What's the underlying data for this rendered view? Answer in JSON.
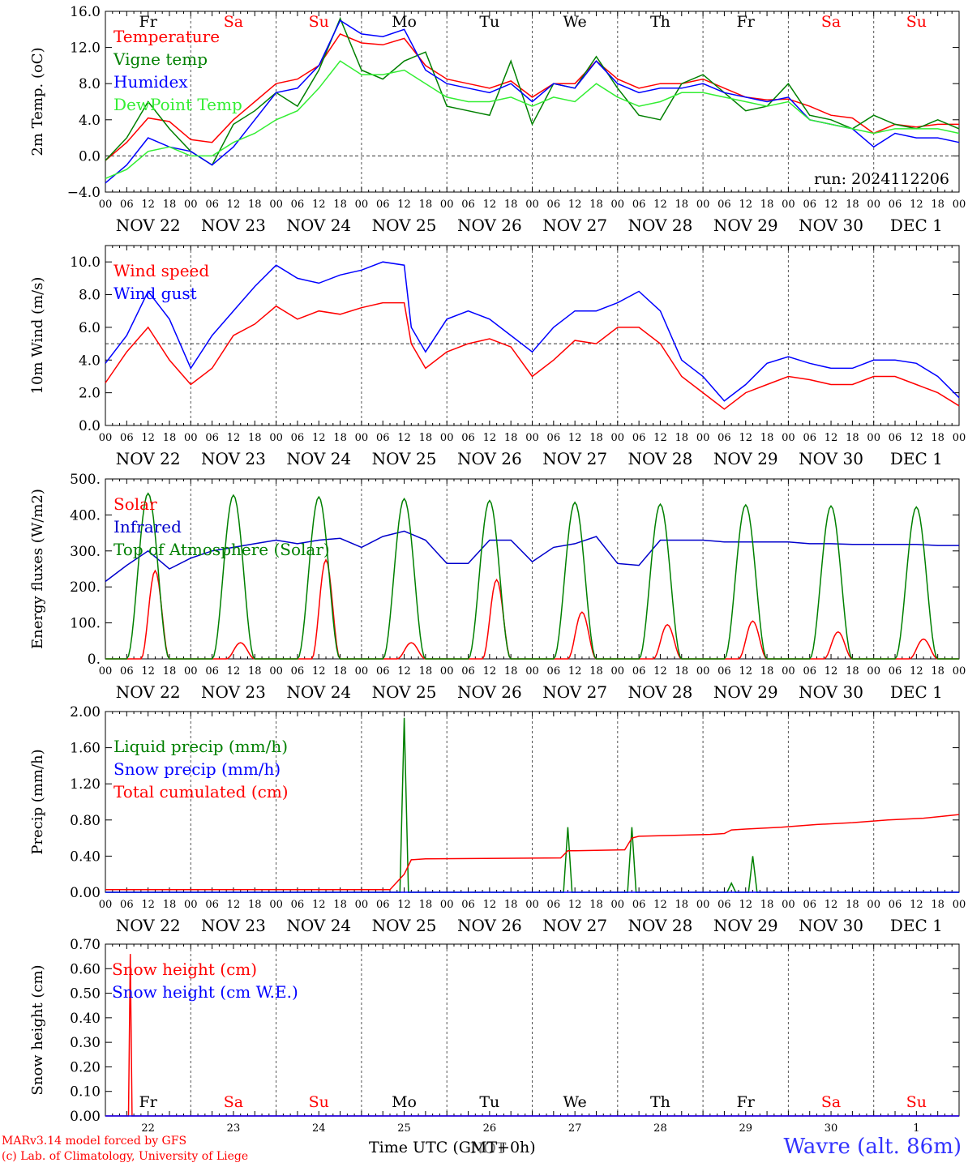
{
  "days": {
    "top_labels": [
      "Fr",
      "Sa",
      "Su",
      "Mo",
      "Tu",
      "We",
      "Th",
      "Fr",
      "Sa",
      "Su"
    ],
    "top_colors": [
      "#000000",
      "#ff0000",
      "#ff0000",
      "#000000",
      "#000000",
      "#000000",
      "#000000",
      "#000000",
      "#ff0000",
      "#ff0000"
    ],
    "date_labels": [
      "NOV 22",
      "NOV 23",
      "NOV 24",
      "NOV 25",
      "NOV 26",
      "NOV 27",
      "NOV 28",
      "NOV 29",
      "NOV 30",
      "DEC  1"
    ],
    "hour_labels": [
      "00",
      "06",
      "12",
      "18"
    ],
    "final_hour_label": "00",
    "bottom_numbers": [
      "22",
      "23",
      "24",
      "25",
      "26",
      "27",
      "28",
      "29",
      "30",
      "1"
    ]
  },
  "footer": {
    "model": "MARv3.14 model forced by GFS",
    "lab": "(c) Lab. of Climatology, University of Liege",
    "time_label": "Time UTC (GMT+0h)",
    "time_overlay": "NOT",
    "station": "Wavre (alt. 86m)"
  },
  "chart_data": [
    {
      "type": "line",
      "ylabel": "2m Temp. (oC)",
      "ylim": [
        -4,
        16
      ],
      "yticks": [
        -4,
        0,
        4,
        8,
        12,
        16
      ],
      "ytick_labels": [
        "−4.0",
        "0.0",
        "4.0",
        "8.0",
        "12.0",
        "16.0"
      ],
      "ref_line": 0,
      "annotation": "run: 2024112206",
      "x_unit": "hours since NOV 22 00 UTC",
      "series": [
        {
          "name": "Temperature",
          "color": "#ff0000",
          "x": [
            0,
            6,
            12,
            18,
            24,
            30,
            36,
            42,
            48,
            54,
            60,
            66,
            72,
            78,
            84,
            90,
            96,
            102,
            108,
            114,
            120,
            126,
            132,
            138,
            144,
            150,
            156,
            162,
            168,
            174,
            180,
            186,
            192,
            198,
            204,
            210,
            216,
            222,
            228,
            234,
            240
          ],
          "y": [
            -0.5,
            1.5,
            4.2,
            3.8,
            1.8,
            1.5,
            4.0,
            6.0,
            8.0,
            8.5,
            10.0,
            13.5,
            12.5,
            12.3,
            13.0,
            10.0,
            8.5,
            8.0,
            7.5,
            8.3,
            6.5,
            8.0,
            8.0,
            10.5,
            8.5,
            7.5,
            8.0,
            8.0,
            8.5,
            7.5,
            6.5,
            6.2,
            6.3,
            5.5,
            4.5,
            4.2,
            2.5,
            3.5,
            3.2,
            3.5,
            3.5
          ]
        },
        {
          "name": "Vigne temp",
          "color": "#008000",
          "x": [
            0,
            6,
            12,
            18,
            24,
            30,
            36,
            42,
            48,
            54,
            60,
            66,
            72,
            78,
            84,
            90,
            96,
            102,
            108,
            114,
            120,
            126,
            132,
            138,
            144,
            150,
            156,
            162,
            168,
            174,
            180,
            186,
            192,
            198,
            204,
            210,
            216,
            222,
            228,
            234,
            240
          ],
          "y": [
            -0.5,
            2.0,
            6.0,
            3.0,
            0.5,
            -1.0,
            3.5,
            5.0,
            7.0,
            5.5,
            9.5,
            15.2,
            9.5,
            8.5,
            10.5,
            11.5,
            5.5,
            5.0,
            4.5,
            10.5,
            3.5,
            8.0,
            7.5,
            11.0,
            7.5,
            4.5,
            4.0,
            8.0,
            9.0,
            7.0,
            5.0,
            5.5,
            8.0,
            4.5,
            4.0,
            3.0,
            4.5,
            3.5,
            3.0,
            4.0,
            3.0
          ]
        },
        {
          "name": "Humidex",
          "color": "#0000ff",
          "x": [
            0,
            6,
            12,
            18,
            24,
            30,
            36,
            42,
            48,
            54,
            60,
            66,
            72,
            78,
            84,
            90,
            96,
            102,
            108,
            114,
            120,
            126,
            132,
            138,
            144,
            150,
            156,
            162,
            168,
            174,
            180,
            186,
            192,
            198,
            204,
            210,
            216,
            222,
            228,
            234,
            240
          ],
          "y": [
            -3.0,
            -1.0,
            2.0,
            1.0,
            0.5,
            -1.0,
            1.0,
            4.0,
            7.0,
            7.5,
            10.0,
            15.0,
            13.5,
            13.2,
            14.0,
            9.5,
            8.0,
            7.5,
            7.0,
            8.0,
            6.0,
            8.0,
            7.5,
            10.5,
            8.0,
            7.0,
            7.5,
            7.5,
            8.0,
            7.0,
            6.5,
            6.0,
            6.5,
            4.0,
            3.5,
            3.0,
            1.0,
            2.5,
            2.0,
            2.0,
            1.5
          ]
        },
        {
          "name": "DewPoint Temp",
          "color": "#33ee33",
          "x": [
            0,
            6,
            12,
            18,
            24,
            30,
            36,
            42,
            48,
            54,
            60,
            66,
            72,
            78,
            84,
            90,
            96,
            102,
            108,
            114,
            120,
            126,
            132,
            138,
            144,
            150,
            156,
            162,
            168,
            174,
            180,
            186,
            192,
            198,
            204,
            210,
            216,
            222,
            228,
            234,
            240
          ],
          "y": [
            -2.5,
            -1.5,
            0.5,
            1.0,
            0.0,
            0.0,
            1.5,
            2.5,
            4.0,
            5.0,
            7.5,
            10.5,
            9.0,
            9.0,
            9.5,
            8.0,
            6.5,
            6.0,
            6.0,
            6.5,
            5.5,
            6.5,
            6.0,
            8.0,
            6.5,
            5.5,
            6.0,
            7.0,
            7.0,
            6.5,
            6.0,
            5.5,
            6.0,
            4.0,
            3.5,
            3.0,
            2.5,
            3.0,
            3.0,
            3.0,
            2.5
          ]
        }
      ]
    },
    {
      "type": "line",
      "ylabel": "10m Wind (m/s)",
      "ylim": [
        0,
        11
      ],
      "yticks": [
        0,
        2,
        4,
        6,
        8,
        10
      ],
      "ytick_labels": [
        "0.0",
        "2.0",
        "4.0",
        "6.0",
        "8.0",
        "10.0"
      ],
      "ref_line": 5,
      "x_unit": "hours since NOV 22 00 UTC",
      "series": [
        {
          "name": "Wind speed",
          "color": "#ff0000",
          "x": [
            0,
            6,
            12,
            18,
            24,
            30,
            36,
            42,
            48,
            54,
            60,
            66,
            72,
            78,
            84,
            86,
            90,
            96,
            102,
            108,
            114,
            120,
            126,
            132,
            138,
            144,
            150,
            156,
            162,
            168,
            174,
            180,
            186,
            192,
            198,
            204,
            210,
            216,
            222,
            228,
            234,
            240
          ],
          "y": [
            2.6,
            4.5,
            6.0,
            4.0,
            2.5,
            3.5,
            5.5,
            6.2,
            7.3,
            6.5,
            7.0,
            6.8,
            7.2,
            7.5,
            7.5,
            5.0,
            3.5,
            4.5,
            5.0,
            5.3,
            4.8,
            3.0,
            4.0,
            5.2,
            5.0,
            6.0,
            6.0,
            5.0,
            3.0,
            2.0,
            1.0,
            2.0,
            2.5,
            3.0,
            2.8,
            2.5,
            2.5,
            3.0,
            3.0,
            2.5,
            2.0,
            1.2
          ]
        },
        {
          "name": "Wind gust",
          "color": "#0000ff",
          "x": [
            0,
            6,
            12,
            18,
            24,
            30,
            36,
            42,
            48,
            54,
            60,
            66,
            72,
            78,
            84,
            86,
            90,
            96,
            102,
            108,
            114,
            120,
            126,
            132,
            138,
            144,
            150,
            156,
            162,
            168,
            174,
            180,
            186,
            192,
            198,
            204,
            210,
            216,
            222,
            228,
            234,
            240
          ],
          "y": [
            3.8,
            5.5,
            8.2,
            6.5,
            3.5,
            5.5,
            7.0,
            8.5,
            9.8,
            9.0,
            8.7,
            9.2,
            9.5,
            10.0,
            9.8,
            6.0,
            4.5,
            6.5,
            7.0,
            6.5,
            5.5,
            4.5,
            6.0,
            7.0,
            7.0,
            7.5,
            8.2,
            7.0,
            4.0,
            3.0,
            1.5,
            2.5,
            3.8,
            4.2,
            3.8,
            3.5,
            3.5,
            4.0,
            4.0,
            3.8,
            3.0,
            1.7
          ]
        }
      ]
    },
    {
      "type": "line",
      "ylabel": "Energy fluxes (W/m2)",
      "ylim": [
        0,
        500
      ],
      "yticks": [
        0,
        100,
        200,
        300,
        400,
        500
      ],
      "ytick_labels": [
        "0.",
        "100.",
        "200.",
        "300.",
        "400.",
        "500."
      ],
      "x_unit": "hours since NOV 22 00 UTC",
      "series": [
        {
          "name": "Solar",
          "color": "#ff0000",
          "peak_hours": [
            14,
            38,
            62,
            86,
            110,
            134,
            158,
            182,
            206,
            230
          ],
          "peak_values": [
            245,
            45,
            275,
            45,
            220,
            130,
            95,
            105,
            75,
            55
          ]
        },
        {
          "name": "Infrared",
          "color": "#0000cc",
          "x": [
            0,
            6,
            12,
            18,
            24,
            30,
            36,
            42,
            48,
            54,
            60,
            66,
            72,
            78,
            84,
            90,
            96,
            102,
            108,
            114,
            120,
            126,
            132,
            138,
            144,
            150,
            156,
            162,
            168,
            174,
            180,
            186,
            192,
            198,
            204,
            210,
            216,
            222,
            228,
            234,
            240
          ],
          "y": [
            215,
            260,
            300,
            250,
            280,
            300,
            310,
            320,
            330,
            320,
            330,
            335,
            310,
            340,
            355,
            330,
            265,
            265,
            330,
            330,
            270,
            310,
            320,
            340,
            265,
            260,
            330,
            330,
            330,
            325,
            325,
            325,
            325,
            320,
            320,
            318,
            318,
            318,
            318,
            315,
            315
          ]
        },
        {
          "name": "Top of Atmosphere (Solar)",
          "color": "#008000",
          "peak_hours": [
            12,
            36,
            60,
            84,
            108,
            132,
            156,
            180,
            204,
            228
          ],
          "peak_values": [
            460,
            455,
            450,
            445,
            440,
            435,
            430,
            428,
            425,
            422
          ]
        }
      ]
    },
    {
      "type": "line",
      "ylabel": "Precip (mm/h)",
      "ylim": [
        0,
        2
      ],
      "yticks": [
        0,
        0.4,
        0.8,
        1.2,
        1.6,
        2.0
      ],
      "ytick_labels": [
        "0.00",
        "0.40",
        "0.80",
        "1.20",
        "1.60",
        "2.00"
      ],
      "x_unit": "hours since NOV 22 00 UTC",
      "series": [
        {
          "name": "Liquid precip (mm/h)",
          "color": "#008000",
          "spike_hours": [
            84,
            130,
            148,
            176,
            182
          ],
          "spike_values": [
            1.93,
            0.72,
            0.72,
            0.1,
            0.4
          ]
        },
        {
          "name": "Snow precip (mm/h)",
          "color": "#0000ff",
          "x": [
            0,
            240
          ],
          "y": [
            0,
            0
          ]
        },
        {
          "name": "Total cumulated (cm)",
          "color": "#ff0000",
          "x": [
            0,
            80,
            84,
            86,
            90,
            128,
            130,
            132,
            146,
            148,
            150,
            170,
            174,
            176,
            180,
            190,
            200,
            210,
            220,
            230,
            240
          ],
          "y": [
            0.03,
            0.03,
            0.2,
            0.36,
            0.37,
            0.38,
            0.46,
            0.46,
            0.47,
            0.6,
            0.62,
            0.64,
            0.65,
            0.69,
            0.7,
            0.72,
            0.75,
            0.77,
            0.8,
            0.82,
            0.86
          ]
        }
      ]
    },
    {
      "type": "line",
      "ylabel": "Snow height (cm)",
      "ylim": [
        0,
        0.7
      ],
      "yticks": [
        0,
        0.1,
        0.2,
        0.3,
        0.4,
        0.5,
        0.6,
        0.7
      ],
      "ytick_labels": [
        "0.00",
        "0.10",
        "0.20",
        "0.30",
        "0.40",
        "0.50",
        "0.60",
        "0.70"
      ],
      "x_unit": "hours since NOV 22 00 UTC",
      "series": [
        {
          "name": "Snow height (cm)",
          "color": "#ff0000",
          "x": [
            0,
            6.5,
            7,
            7.5,
            240
          ],
          "y": [
            0,
            0,
            0.66,
            0,
            0
          ]
        },
        {
          "name": "Snow height (cm W.E.)",
          "color": "#0000ff",
          "x": [
            0,
            240
          ],
          "y": [
            0,
            0
          ]
        }
      ]
    }
  ]
}
